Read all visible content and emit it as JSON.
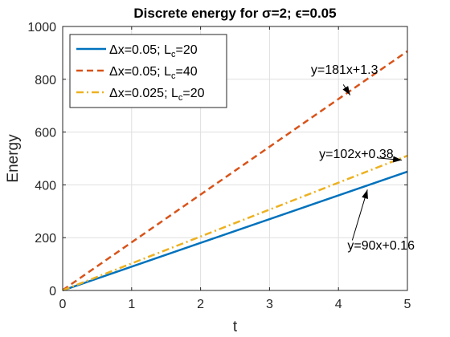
{
  "chart_data": {
    "type": "line",
    "title": "Discrete energy for σ=2; ϵ=0.05",
    "xlabel": "t",
    "ylabel": "Energy",
    "xlim": [
      0,
      5
    ],
    "ylim": [
      0,
      1000
    ],
    "xticks": [
      0,
      1,
      2,
      3,
      4,
      5
    ],
    "yticks": [
      0,
      200,
      400,
      600,
      800,
      1000
    ],
    "xtick_labels": [
      "0",
      "1",
      "2",
      "3",
      "4",
      "5"
    ],
    "ytick_labels": [
      "0",
      "200",
      "400",
      "600",
      "800",
      "1000"
    ],
    "grid": true,
    "legend_position": "top-left",
    "series": [
      {
        "name": "Δx=0.05; L_c=20",
        "legend_main": "Δx=0.05; L",
        "legend_sub": "c",
        "legend_tail": "=20",
        "color": "#0072BD",
        "dash": "solid",
        "x": [
          0,
          5
        ],
        "y": [
          0.16,
          450.16
        ]
      },
      {
        "name": "Δx=0.05; L_c=40",
        "legend_main": "Δx=0.05; L",
        "legend_sub": "c",
        "legend_tail": "=40",
        "color": "#D95319",
        "dash": "dashed",
        "x": [
          0,
          5
        ],
        "y": [
          1.3,
          906.3
        ]
      },
      {
        "name": "Δx=0.025; L_c=20",
        "legend_main": "Δx=0.025; L",
        "legend_sub": "c",
        "legend_tail": "=20",
        "color": "#EDB120",
        "dash": "dashdot",
        "x": [
          0,
          5
        ],
        "y": [
          0.38,
          510.38
        ]
      }
    ],
    "annotations": [
      {
        "text": "y=181x+1.3",
        "text_x": 3.6,
        "text_y": 820,
        "arrow_from": [
          4.07,
          780
        ],
        "arrow_to": [
          4.17,
          740
        ]
      },
      {
        "text": "y=102x+0.38",
        "text_x": 3.72,
        "text_y": 502,
        "arrow_from": [
          4.57,
          502
        ],
        "arrow_to": [
          4.92,
          494
        ]
      },
      {
        "text": "y=90x+0.16",
        "text_x": 4.13,
        "text_y": 155,
        "arrow_from": [
          4.2,
          190
        ],
        "arrow_to": [
          4.42,
          382
        ]
      }
    ]
  }
}
